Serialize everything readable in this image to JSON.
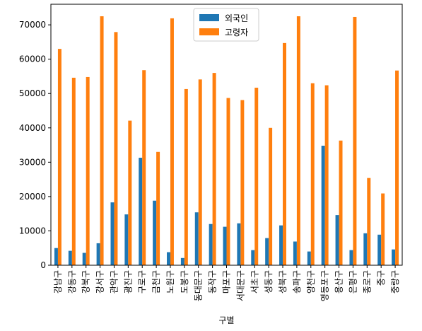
{
  "chart_data": {
    "type": "bar",
    "title": "",
    "xlabel": "구별",
    "ylabel": "",
    "ylim": [
      0,
      76000
    ],
    "yticks": [
      0,
      10000,
      20000,
      30000,
      40000,
      50000,
      60000,
      70000
    ],
    "legend_position": "top-center",
    "grid": false,
    "categories": [
      "강남구",
      "강동구",
      "강북구",
      "강서구",
      "관악구",
      "광진구",
      "구로구",
      "금천구",
      "노원구",
      "도봉구",
      "동대문구",
      "동작구",
      "마포구",
      "서대문구",
      "서초구",
      "성동구",
      "성북구",
      "송파구",
      "양천구",
      "영등포구",
      "용산구",
      "은평구",
      "종로구",
      "중구",
      "중랑구"
    ],
    "series": [
      {
        "name": "외국인",
        "color": "#1f77b4",
        "values": [
          5000,
          4200,
          3600,
          6400,
          18300,
          14800,
          31300,
          18800,
          3800,
          2100,
          15400,
          12000,
          11200,
          12200,
          4400,
          7900,
          11600,
          6900,
          4000,
          34800,
          14600,
          4400,
          9300,
          8900,
          4600
        ]
      },
      {
        "name": "고령자",
        "color": "#ff7f0e",
        "values": [
          63000,
          54600,
          54800,
          72500,
          67900,
          42100,
          56800,
          33000,
          71900,
          51300,
          54100,
          56000,
          48700,
          48100,
          51700,
          40000,
          64700,
          72500,
          53000,
          52400,
          36300,
          72300,
          25400,
          20900,
          56700
        ]
      }
    ]
  }
}
